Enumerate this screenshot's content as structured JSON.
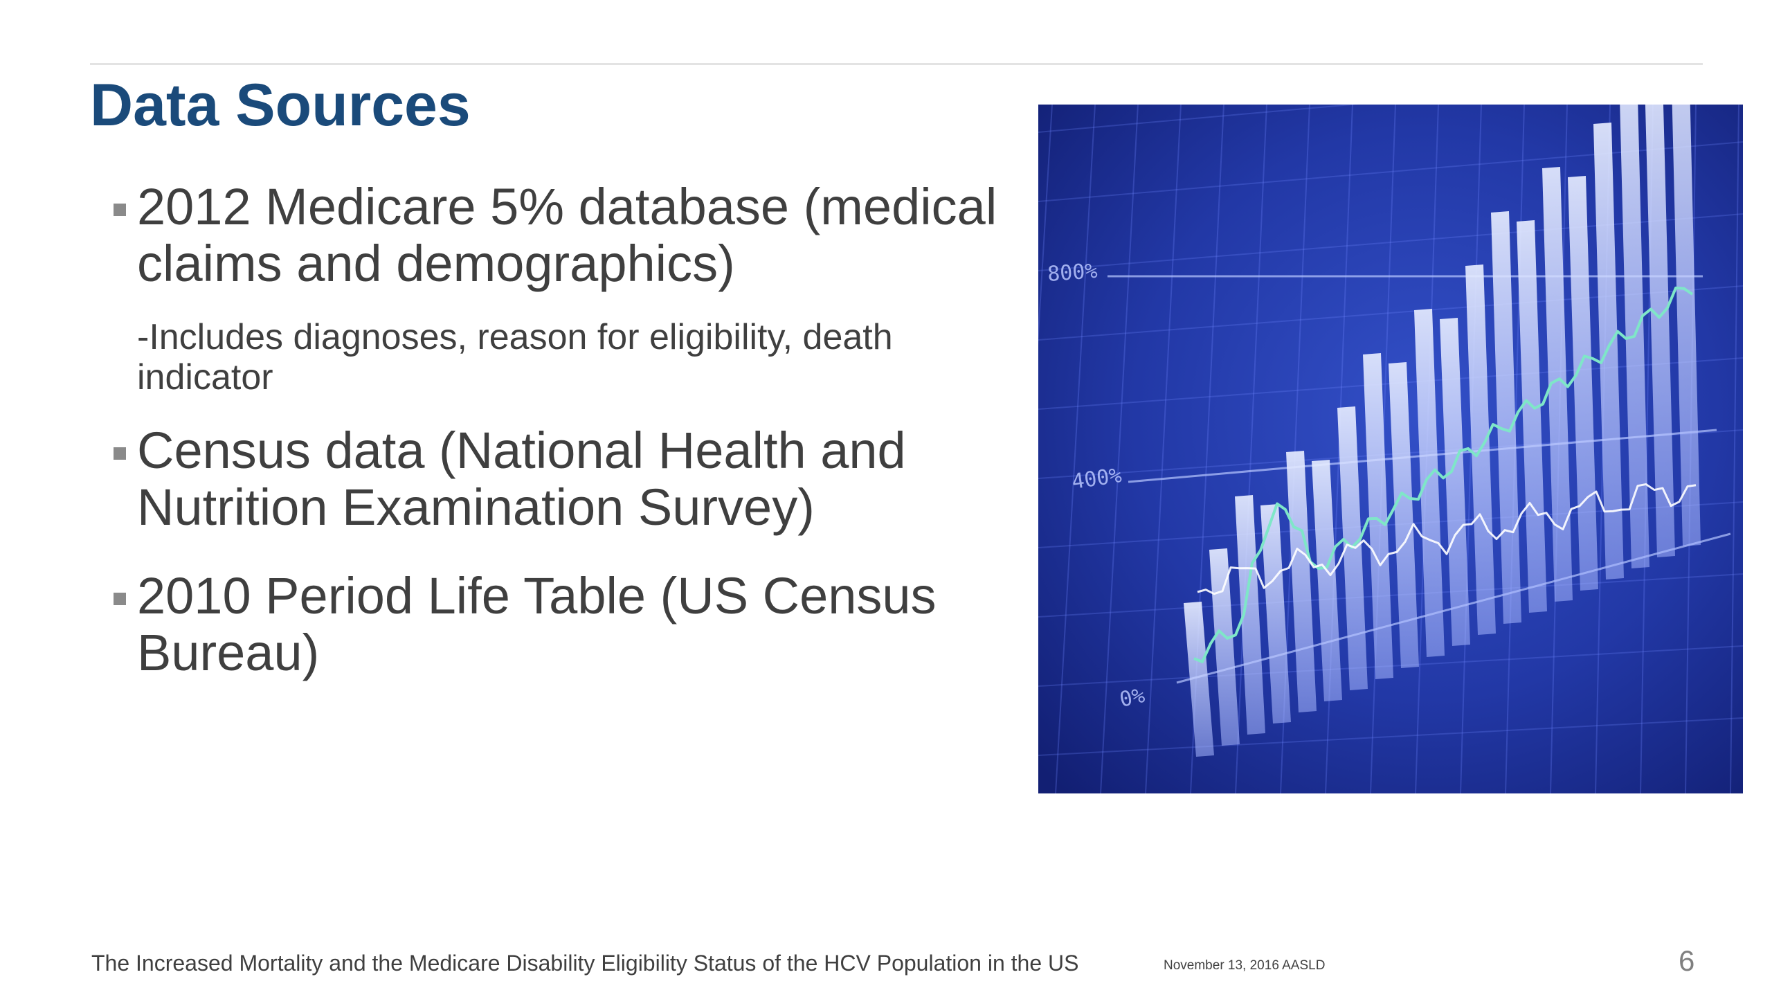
{
  "slide": {
    "title": "Data Sources",
    "bullets": [
      {
        "text": "2012 Medicare 5% database (medical claims and demographics)"
      },
      {
        "text": "Census data (National Health and Nutrition Examination Survey)"
      },
      {
        "text": "2010 Period Life Table (US Census Bureau)"
      }
    ],
    "sub_bullet": "-Includes diagnoses, reason for eligibility, death indicator",
    "picture": {
      "axis_labels": [
        "800%",
        "400%",
        "0%"
      ],
      "colors": {
        "background": "#1b2c8c",
        "bars": "#c9d4ff",
        "line_green": "#7fe6c8",
        "line_white": "#ffffff"
      }
    },
    "footer": {
      "title": "The Increased Mortality and the Medicare Disability Eligibility Status of the HCV Population in the US",
      "date": "November 13, 2016  AASLD",
      "page_number": "6"
    }
  }
}
